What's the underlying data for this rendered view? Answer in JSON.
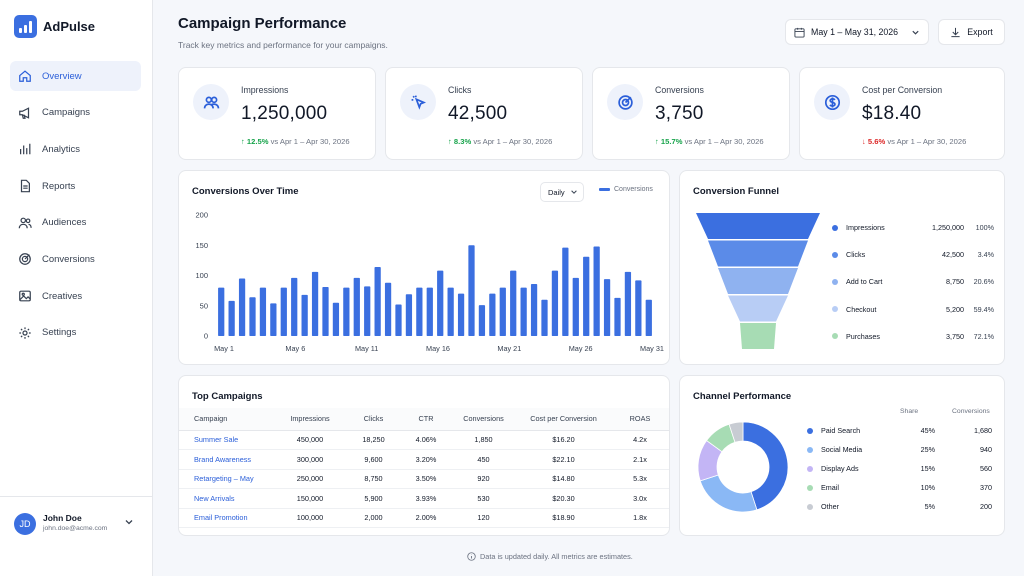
{
  "app": {
    "name": "AdPulse"
  },
  "nav": [
    {
      "label": "Overview",
      "icon": "home-icon",
      "active": true
    },
    {
      "label": "Campaigns",
      "icon": "megaphone-icon"
    },
    {
      "label": "Analytics",
      "icon": "bar-chart-icon"
    },
    {
      "label": "Reports",
      "icon": "document-icon"
    },
    {
      "label": "Audiences",
      "icon": "users-icon"
    },
    {
      "label": "Conversions",
      "icon": "target-icon"
    },
    {
      "label": "Creatives",
      "icon": "image-icon"
    },
    {
      "label": "Settings",
      "icon": "gear-icon"
    }
  ],
  "user": {
    "initials": "JD",
    "name": "John Doe",
    "email": "john.doe@acme.com"
  },
  "header": {
    "title": "Campaign Performance",
    "subtitle": "Track key metrics and performance for your campaigns.",
    "date_range": "May 1 – May 31, 2026",
    "export_label": "Export"
  },
  "kpis": [
    {
      "label": "Impressions",
      "value": "1,250,000",
      "delta": "12.5%",
      "direction": "up",
      "compare": "vs Apr 1 – Apr 30, 2026",
      "icon": "users-icon"
    },
    {
      "label": "Clicks",
      "value": "42,500",
      "delta": "8.3%",
      "direction": "up",
      "compare": "vs Apr 1 – Apr 30, 2026",
      "icon": "cursor-click-icon"
    },
    {
      "label": "Conversions",
      "value": "3,750",
      "delta": "15.7%",
      "direction": "up",
      "compare": "vs Apr 1 – Apr 30, 2026",
      "icon": "target-icon"
    },
    {
      "label": "Cost per Conversion",
      "value": "$18.40",
      "delta": "5.6%",
      "direction": "down",
      "compare": "vs  Apr 1 – Apr 30, 2026",
      "icon": "dollar-icon"
    }
  ],
  "conv_over_time": {
    "title": "Conversions Over Time",
    "granularity": "Daily",
    "legend": "Conversions"
  },
  "chart_data": {
    "type": "bar",
    "series": [
      {
        "name": "Conversions",
        "values": [
          80,
          58,
          95,
          64,
          80,
          54,
          80,
          96,
          68,
          106,
          81,
          55,
          80,
          96,
          82,
          114,
          88,
          52,
          69,
          80,
          80,
          108,
          80,
          70,
          150,
          51,
          70,
          80,
          108,
          80,
          86,
          60,
          108,
          146,
          96,
          131,
          148,
          94,
          63,
          106,
          92,
          60
        ]
      }
    ],
    "x_ticks": [
      "May 1",
      "May 6",
      "May 11",
      "May 16",
      "May 21",
      "May 26",
      "May 31"
    ],
    "ylim": [
      0,
      200
    ],
    "y_ticks": [
      0,
      50,
      100,
      150,
      200
    ],
    "grid": false,
    "color": "#3b6fe0"
  },
  "funnel": {
    "title": "Conversion Funnel",
    "stages": [
      {
        "label": "Impressions",
        "value": "1,250,000",
        "pct": "100%",
        "color": "#3b6fe0"
      },
      {
        "label": "Clicks",
        "value": "42,500",
        "pct": "3.4%",
        "color": "#5b8be8"
      },
      {
        "label": "Add to Cart",
        "value": "8,750",
        "pct": "20.6%",
        "color": "#8fb2f0"
      },
      {
        "label": "Checkout",
        "value": "5,200",
        "pct": "59.4%",
        "color": "#b8cdf5"
      },
      {
        "label": "Purchases",
        "value": "3,750",
        "pct": "72.1%",
        "color": "#a7dcb4"
      }
    ]
  },
  "campaigns": {
    "title": "Top Campaigns",
    "columns": [
      "Campaign",
      "Impressions",
      "Clicks",
      "CTR",
      "Conversions",
      "Cost per Conversion",
      "ROAS"
    ],
    "rows": [
      [
        "Summer Sale",
        "450,000",
        "18,250",
        "4.06%",
        "1,850",
        "$16.20",
        "4.2x"
      ],
      [
        "Brand Awareness",
        "300,000",
        "9,600",
        "3.20%",
        "450",
        "$22.10",
        "2.1x"
      ],
      [
        "Retargeting – May",
        "250,000",
        "8,750",
        "3.50%",
        "920",
        "$14.80",
        "5.3x"
      ],
      [
        "New Arrivals",
        "150,000",
        "5,900",
        "3.93%",
        "530",
        "$20.30",
        "3.0x"
      ],
      [
        "Email Promotion",
        "100,000",
        "2,000",
        "2.00%",
        "120",
        "$18.90",
        "1.8x"
      ]
    ]
  },
  "channels": {
    "title": "Channel Performance",
    "share_label": "Share",
    "conv_label": "Conversions",
    "rows": [
      {
        "label": "Paid Search",
        "share": "45%",
        "share_value": 45,
        "conversions": "1,680",
        "color": "#3b6fe0"
      },
      {
        "label": "Social Media",
        "share": "25%",
        "share_value": 25,
        "conversions": "940",
        "color": "#8ab8f5"
      },
      {
        "label": "Display Ads",
        "share": "15%",
        "share_value": 15,
        "conversions": "560",
        "color": "#c3b5f5"
      },
      {
        "label": "Email",
        "share": "10%",
        "share_value": 10,
        "conversions": "370",
        "color": "#a7dcb4"
      },
      {
        "label": "Other",
        "share": "5%",
        "share_value": 5,
        "conversions": "200",
        "color": "#c8ccd3"
      }
    ]
  },
  "footer": {
    "note": "Data is updated daily. All metrics are estimates."
  }
}
